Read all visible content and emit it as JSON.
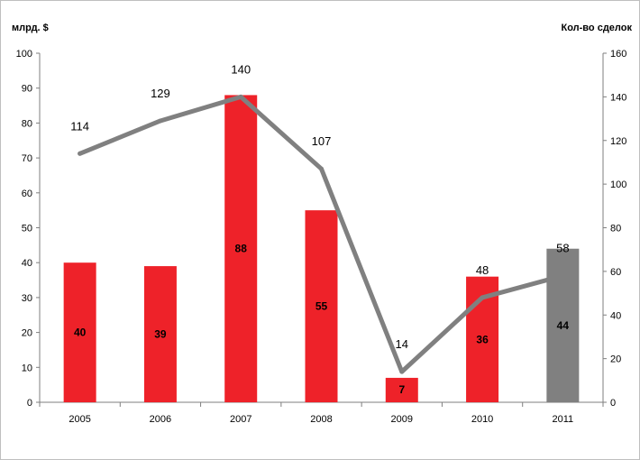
{
  "chart_data": {
    "type": "bar",
    "left_axis_unit": "млрд. $",
    "right_axis_unit": "Кол-во сделок",
    "categories": [
      "2005",
      "2006",
      "2007",
      "2008",
      "2009",
      "2010",
      "2011"
    ],
    "series": [
      {
        "kind": "bar",
        "axis": "left",
        "values": [
          40,
          39,
          88,
          55,
          7,
          36,
          44
        ],
        "value_labels": [
          "40",
          "39",
          "88",
          "55",
          "7",
          "36",
          "44"
        ],
        "colors": [
          "#ee2229",
          "#ee2229",
          "#ee2229",
          "#ee2229",
          "#ee2229",
          "#ee2229",
          "#808080"
        ]
      },
      {
        "kind": "line",
        "axis": "right",
        "values": [
          114,
          129,
          140,
          107,
          14,
          48,
          58
        ],
        "value_labels": [
          "114",
          "129",
          "140",
          "107",
          "14",
          "48",
          "58"
        ],
        "color": "#808080"
      }
    ],
    "left_axis": {
      "ylim": [
        0,
        100
      ],
      "ticks": [
        0,
        10,
        20,
        30,
        40,
        50,
        60,
        70,
        80,
        90,
        100
      ],
      "tick_labels": [
        "0",
        "10",
        "20",
        "30",
        "40",
        "50",
        "60",
        "70",
        "80",
        "90",
        "100"
      ]
    },
    "right_axis": {
      "ylim": [
        0,
        160
      ],
      "ticks": [
        0,
        20,
        40,
        60,
        80,
        100,
        120,
        140,
        160
      ],
      "tick_labels": [
        "0",
        "20",
        "40",
        "60",
        "80",
        "100",
        "120",
        "140",
        "160"
      ]
    },
    "grid": false,
    "legend": "none"
  }
}
